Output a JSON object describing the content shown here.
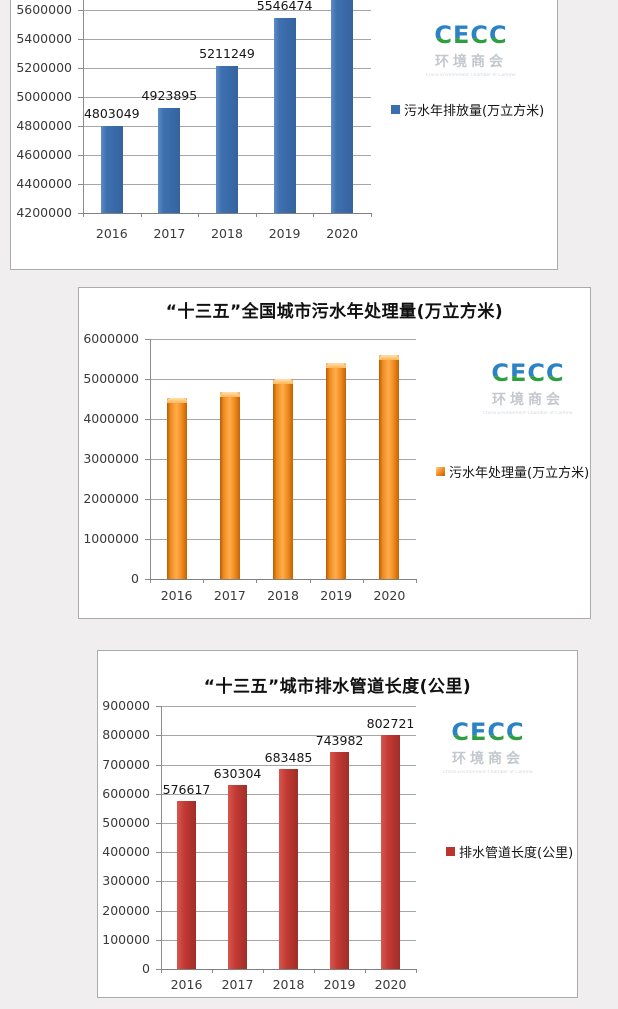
{
  "page": {
    "background_color": "#f0eeee",
    "panel_border_color": "#ababab"
  },
  "logo": {
    "text": "CECC",
    "chinese": "环境商会",
    "tagline": "China Environment Chamber of Commerce",
    "blue": "#2b83c5",
    "green": "#2f9e41"
  },
  "chart_data": [
    {
      "type": "bar",
      "title": "",
      "note": "chart cropped at top edge of screenshot: its title and the top of the 2020 bar are not visible",
      "categories": [
        "2016",
        "2017",
        "2018",
        "2019",
        "2020"
      ],
      "series": [
        {
          "name": "污水年排放量(万立方米)",
          "values": [
            4803049,
            4923895,
            5211249,
            5546474,
            null
          ]
        }
      ],
      "data_labels": [
        "4803049",
        "4923895",
        "5211249",
        "5546474",
        ""
      ],
      "legend": {
        "label": "污水年排放量(万立方米)",
        "position": "right"
      },
      "yticks": [
        "5600000",
        "5400000",
        "5200000",
        "5000000",
        "4800000",
        "4600000",
        "4400000",
        "4200000"
      ],
      "axis": {
        "ymin": 4200000,
        "ystep": 200000,
        "ymax_visible": 5600000
      },
      "grid": true,
      "bar_color": "#3b6fb0"
    },
    {
      "type": "bar",
      "title": "“十三五”全国城市污水年处理量(万立方米)",
      "categories": [
        "2016",
        "2017",
        "2018",
        "2019",
        "2020"
      ],
      "series": [
        {
          "name": "污水年处理量(万立方米)",
          "values": [
            4525000,
            4675000,
            5000000,
            5400000,
            5600000
          ]
        }
      ],
      "values_estimated_from_gridlines": true,
      "data_labels": null,
      "legend": {
        "label": "污水年处理量(万立方米)",
        "position": "right"
      },
      "yticks": [
        "6000000",
        "5000000",
        "4000000",
        "3000000",
        "2000000",
        "1000000",
        "0"
      ],
      "axis": {
        "ymin": 0,
        "ystep": 1000000,
        "ymax": 6000000
      },
      "grid": true,
      "bar_color": "#f08a1d"
    },
    {
      "type": "bar",
      "title": "“十三五”城市排水管道长度(公里)",
      "categories": [
        "2016",
        "2017",
        "2018",
        "2019",
        "2020"
      ],
      "series": [
        {
          "name": "排水管道长度(公里)",
          "values": [
            576617,
            630304,
            683485,
            743982,
            802721
          ]
        }
      ],
      "data_labels": [
        "576617",
        "630304",
        "683485",
        "743982",
        "802721"
      ],
      "legend": {
        "label": "排水管道长度(公里)",
        "position": "right"
      },
      "yticks": [
        "900000",
        "800000",
        "700000",
        "600000",
        "500000",
        "400000",
        "300000",
        "200000",
        "100000",
        "0"
      ],
      "axis": {
        "ymin": 0,
        "ystep": 100000,
        "ymax": 900000
      },
      "grid": true,
      "bar_color": "#c0392f"
    }
  ]
}
